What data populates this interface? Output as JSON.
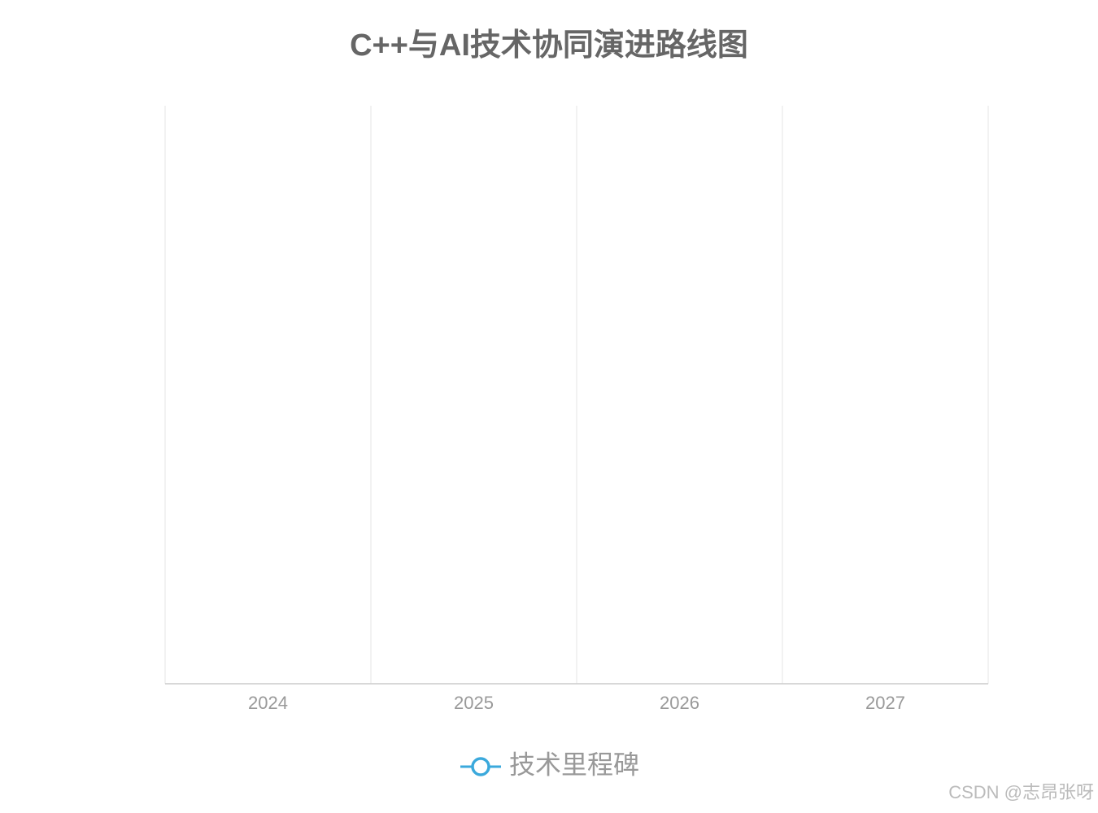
{
  "chart_data": {
    "type": "line",
    "title": "C++与AI技术协同演进路线图",
    "categories": [
      "2024",
      "2025",
      "2026",
      "2027"
    ],
    "series": [
      {
        "name": "技术里程碑",
        "color": "#3ba9dc",
        "values": [
          null,
          null,
          null,
          null
        ]
      }
    ],
    "legend": "bottom"
  },
  "watermark": "CSDN @志昂张呀"
}
